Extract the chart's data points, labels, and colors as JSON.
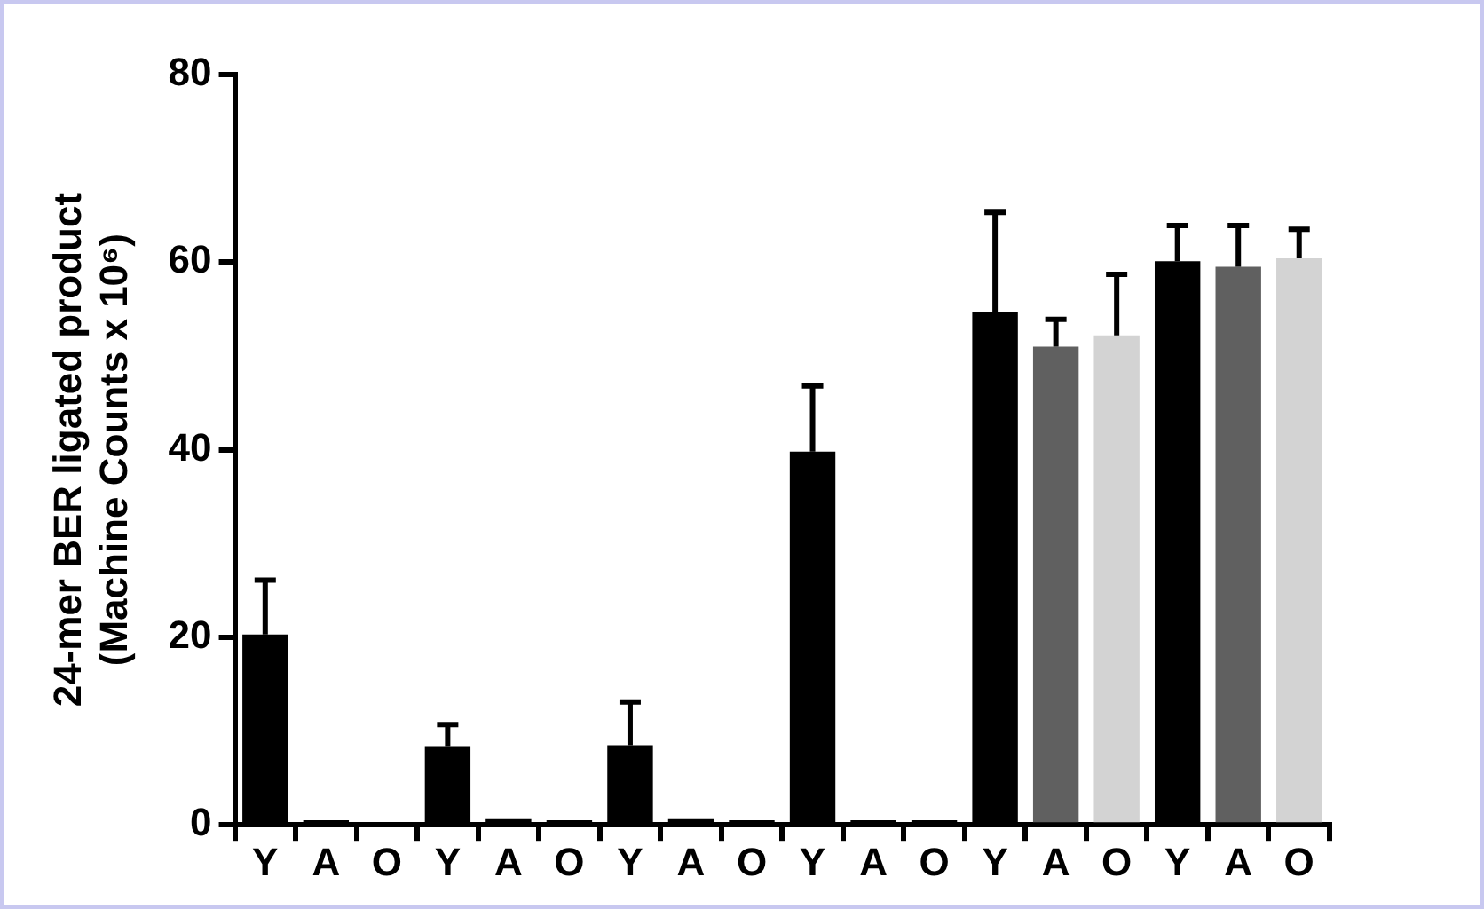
{
  "chart_data": {
    "type": "bar",
    "ylabel": "24-mer BER ligated product\n(Machine Counts x 10⁶)",
    "categories": [
      "Y",
      "A",
      "O",
      "Y",
      "A",
      "O",
      "Y",
      "A",
      "O",
      "Y",
      "A",
      "O",
      "Y",
      "A",
      "O",
      "Y",
      "A",
      "O"
    ],
    "values": [
      20.3,
      0.5,
      0,
      8.4,
      0.6,
      0.5,
      8.5,
      0.6,
      0.5,
      39.8,
      0.5,
      0.5,
      54.7,
      51.0,
      52.2,
      60.1,
      59.5,
      60.4
    ],
    "colors": [
      "#000000",
      "#000000",
      "#000000",
      "#000000",
      "#000000",
      "#000000",
      "#000000",
      "#000000",
      "#000000",
      "#000000",
      "#000000",
      "#000000",
      "#000000",
      "#606060",
      "#d3d3d3",
      "#000000",
      "#606060",
      "#d3d3d3"
    ],
    "errors": [
      [
        20.3,
        26.1
      ],
      null,
      null,
      [
        8.4,
        10.7
      ],
      null,
      null,
      [
        8.5,
        13.1
      ],
      null,
      null,
      [
        39.8,
        46.8
      ],
      null,
      null,
      [
        54.7,
        65.3
      ],
      [
        51.0,
        53.9
      ],
      [
        52.2,
        58.7
      ],
      [
        60.1,
        63.9
      ],
      [
        59.5,
        63.9
      ],
      [
        60.4,
        63.5
      ]
    ],
    "ylim": [
      0,
      80
    ],
    "yticks": [
      0,
      20,
      40,
      60,
      80
    ],
    "grid": false,
    "legend": false
  }
}
